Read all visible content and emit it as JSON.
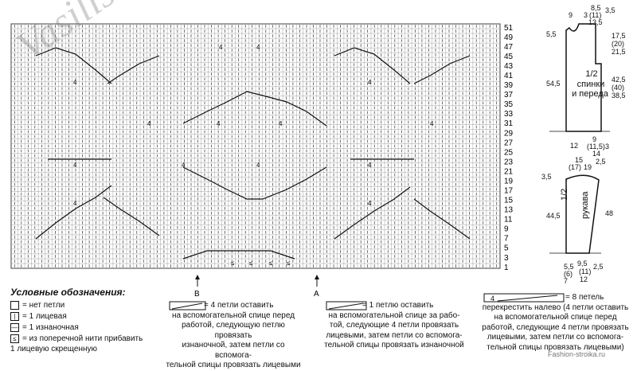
{
  "watermark": "Vasilisa.ru",
  "row_numbers": [
    "51",
    "49",
    "47",
    "45",
    "43",
    "41",
    "39",
    "37",
    "35",
    "33",
    "31",
    "29",
    "27",
    "25",
    "23",
    "21",
    "19",
    "17",
    "15",
    "13",
    "11",
    "9",
    "7",
    "5",
    "3",
    "1"
  ],
  "chart_cell_numbers": [
    "4",
    "4",
    "4",
    "4",
    "4",
    "4",
    "4",
    "4",
    "4",
    "4",
    "4",
    "4",
    "4",
    "4"
  ],
  "markers": {
    "b": "В",
    "a": "А"
  },
  "legend": {
    "title": "Условные обозначения:",
    "items": [
      {
        "symbol": "",
        "text": "= нет петли"
      },
      {
        "symbol": "|",
        "text": "= 1 лицевая"
      },
      {
        "symbol": "—",
        "text": "= 1 изнаночная"
      },
      {
        "symbol": "≤",
        "text": "= из поперечной нити прибавить"
      }
    ],
    "item4_cont": "1 лицевую скрещенную",
    "block1": [
      "= 4 петли оставить",
      "на вспомогательной спице перед",
      "работой, следующую петлю провязать",
      "изнаночной, затем петли со вспомога-",
      "тельной спицы провязать лицевыми"
    ],
    "block2": [
      "= 1 петлю оставить",
      "на вспомогательной спице за рабо-",
      "той, следующие 4 петли провязать",
      "лицевыми, затем петли со вспомога-",
      "тельной спицы провязать изнаночной"
    ],
    "block3_num": "4",
    "block3": [
      "= 8 петель",
      "перекрестить налево (4 петли оставить",
      "на вспомогательной спице перед",
      "работой, следующие 4 петли провязать",
      "лицевыми, затем петли со вспомога-",
      "тельной спицы провязать лицевыми)"
    ]
  },
  "schematic_body": {
    "top_dims": [
      "9",
      "3",
      "8,5",
      "(11)",
      "13,5",
      "3,5"
    ],
    "left_dim": "5,5",
    "right_dims": [
      "17,5",
      "(20)",
      "21,5"
    ],
    "height_left": "54,5",
    "height_right": [
      "42,5",
      "(40)",
      "38,5"
    ],
    "label": [
      "1/2",
      "спинки",
      "и переда"
    ],
    "bottom_dims": [
      "12",
      "9",
      "(11,5)",
      "14",
      "3",
      "15",
      "(17)",
      "19",
      "2,5"
    ]
  },
  "schematic_sleeve": {
    "top_dim": "3,5",
    "height_left": "44,5",
    "height_right": "48",
    "label": [
      "1/2",
      "рукава"
    ],
    "bottom_dims": [
      "5,5",
      "(6)",
      "7",
      "9,5",
      "(11)",
      "12",
      "2,5"
    ]
  },
  "site_watermark": "Fashion-stroika.ru"
}
